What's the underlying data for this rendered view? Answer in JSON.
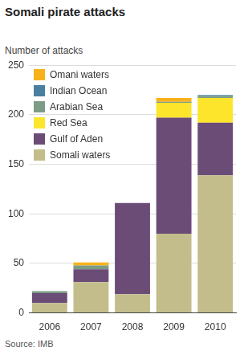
{
  "chart_data": {
    "type": "bar",
    "title": "Somali pirate attacks",
    "y_label": "Number of attacks",
    "source": "Source: IMB",
    "categories": [
      "2006",
      "2007",
      "2008",
      "2009",
      "2010"
    ],
    "series": [
      {
        "name": "Somali waters",
        "color": "#c3bd8b",
        "values": [
          10,
          31,
          19,
          80,
          139
        ]
      },
      {
        "name": "Gulf of Aden",
        "color": "#6b4c77",
        "values": [
          10,
          13,
          92,
          117,
          53
        ]
      },
      {
        "name": "Red Sea",
        "color": "#fde52c",
        "values": [
          0,
          0,
          0,
          15,
          25
        ]
      },
      {
        "name": "Arabian Sea",
        "color": "#7d9c85",
        "values": [
          2,
          4,
          0,
          1,
          2
        ]
      },
      {
        "name": "Indian Ocean",
        "color": "#4a7fa0",
        "values": [
          0,
          0,
          0,
          0,
          1
        ]
      },
      {
        "name": "Omani waters",
        "color": "#f7b21a",
        "values": [
          0,
          3,
          0,
          4,
          0
        ]
      }
    ],
    "ylim": [
      0,
      250
    ],
    "yticks": [
      0,
      50,
      100,
      150,
      200,
      250
    ],
    "stacked": true,
    "grid": true,
    "legend": "top-left"
  }
}
